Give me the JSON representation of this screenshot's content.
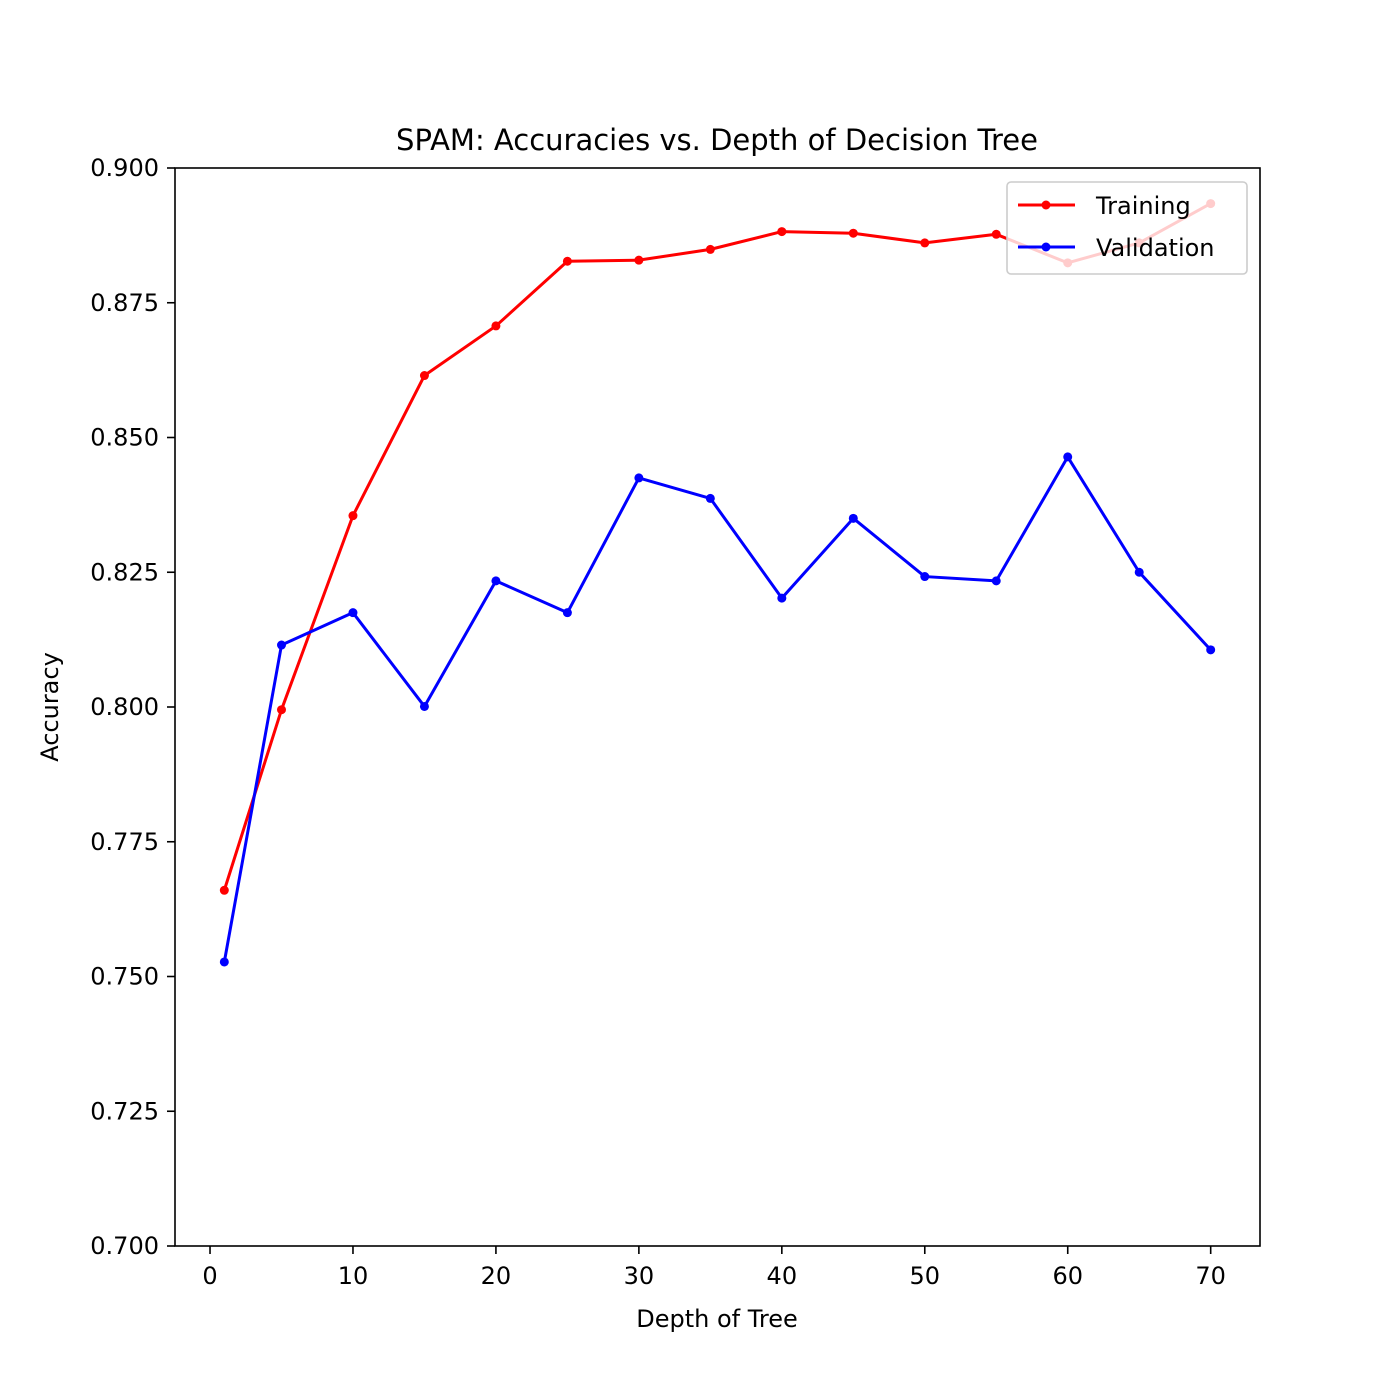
{
  "chart_data": {
    "type": "line",
    "title": "SPAM: Accuracies vs. Depth of Decision Tree",
    "xlabel": "Depth of Tree",
    "ylabel": "Accuracy",
    "xlim": [
      -2.45,
      73.45
    ],
    "ylim": [
      0.7,
      0.9
    ],
    "xticks": [
      0,
      10,
      20,
      30,
      40,
      50,
      60,
      70
    ],
    "yticks": [
      0.7,
      0.725,
      0.75,
      0.775,
      0.8,
      0.825,
      0.85,
      0.875,
      0.9
    ],
    "xtick_labels": [
      "0",
      "10",
      "20",
      "30",
      "40",
      "50",
      "60",
      "70"
    ],
    "ytick_labels": [
      "0.700",
      "0.725",
      "0.750",
      "0.775",
      "0.800",
      "0.825",
      "0.850",
      "0.875",
      "0.900"
    ],
    "grid": false,
    "legend_position": "top-right",
    "x": [
      1,
      5,
      10,
      15,
      20,
      25,
      30,
      35,
      40,
      45,
      50,
      55,
      60,
      65,
      70
    ],
    "series": [
      {
        "name": "Training",
        "color": "#ff0000",
        "values": [
          0.766,
          0.7995,
          0.8355,
          0.8615,
          0.8707,
          0.8827,
          0.8829,
          0.8849,
          0.8882,
          0.8879,
          0.8861,
          0.8877,
          0.8824,
          0.8861,
          0.8934
        ]
      },
      {
        "name": "Validation",
        "color": "#0000ff",
        "values": [
          0.7527,
          0.8115,
          0.8175,
          0.8001,
          0.8234,
          0.8175,
          0.8425,
          0.8387,
          0.8202,
          0.835,
          0.8242,
          0.8234,
          0.8464,
          0.825,
          0.8106
        ]
      }
    ]
  }
}
